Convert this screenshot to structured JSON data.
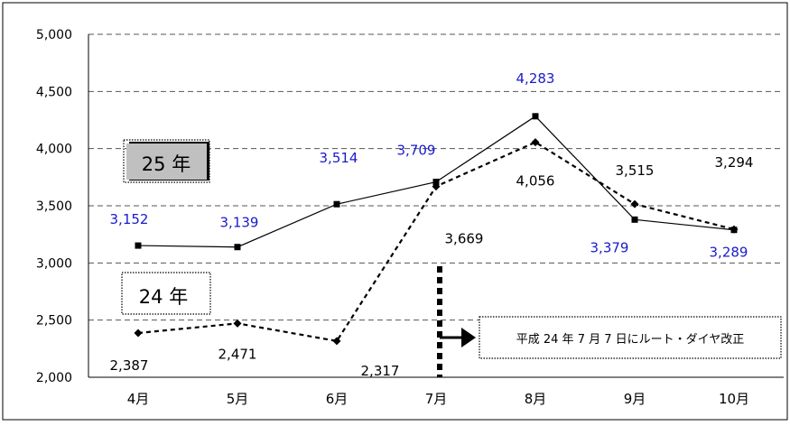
{
  "chart_data": {
    "type": "line",
    "categories": [
      "4月",
      "5月",
      "6月",
      "7月",
      "8月",
      "9月",
      "10月"
    ],
    "series": [
      {
        "name": "25 年",
        "values": [
          3152,
          3139,
          3514,
          3709,
          4283,
          3379,
          3289
        ],
        "style": "solid",
        "marker": "square",
        "label_color": "#1a1acc"
      },
      {
        "name": "24 年",
        "values": [
          2387,
          2471,
          2317,
          3669,
          4056,
          3515,
          3294
        ],
        "style": "dashed",
        "marker": "diamond",
        "label_color": "#000000"
      }
    ],
    "data_labels": {
      "s25": [
        "3,152",
        "3,139",
        "3,514",
        "3,709",
        "4,283",
        "3,379",
        "3,289"
      ],
      "s24": [
        "2,387",
        "2,471",
        "2,317",
        "3,669",
        "4,056",
        "3,515",
        "3,294"
      ]
    },
    "yticks": [
      2000,
      2500,
      3000,
      3500,
      4000,
      4500,
      5000
    ],
    "ytick_labels": [
      "2,000",
      "2,500",
      "3,000",
      "3,500",
      "4,000",
      "4,500",
      "5,000"
    ],
    "ylim": [
      2000,
      5000
    ],
    "grid": "horizontal-dashed",
    "legend": {
      "s25": "25 年",
      "s24": "24 年"
    },
    "annotation": {
      "text": "平成 24 年 7 月 7 日にルート・ダイヤ改正",
      "at_category": "7月"
    },
    "colors": {
      "s25_labels": "#1a1acc",
      "s24_labels": "#000000",
      "legend25_fill": "#c0c0c0",
      "line": "#000000"
    }
  }
}
